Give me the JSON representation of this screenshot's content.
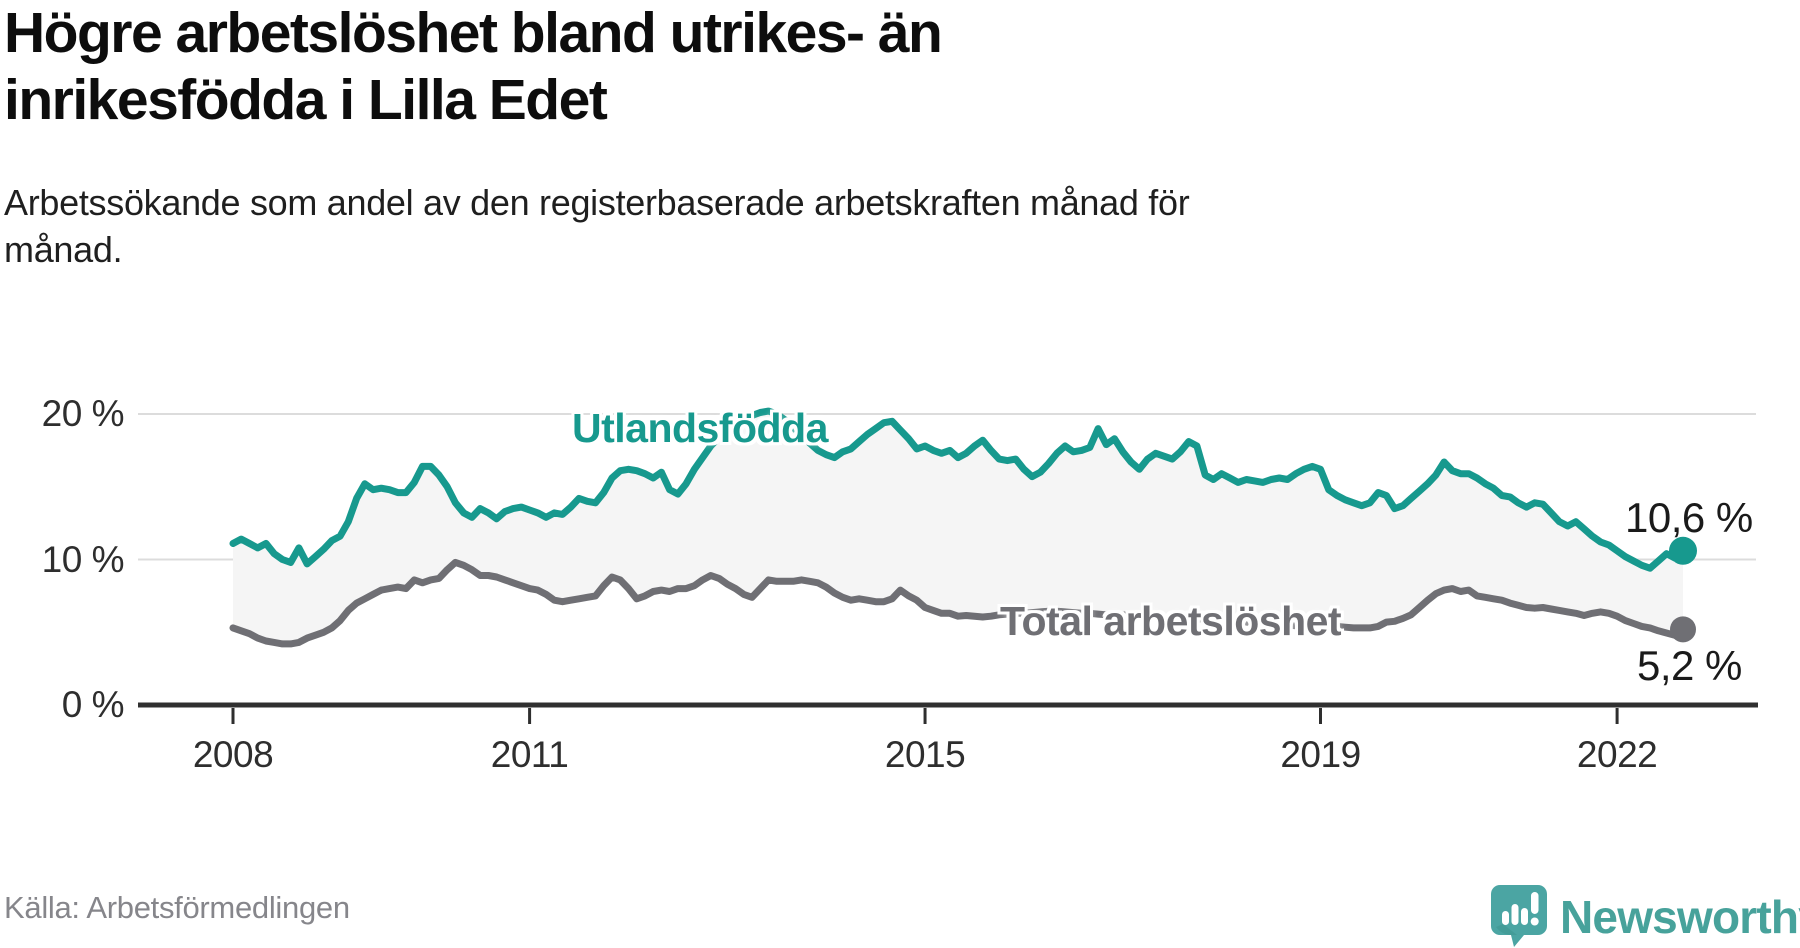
{
  "title_lines": [
    "Högre arbetslöshet bland utrikes- än",
    "inrikesfödda i Lilla Edet"
  ],
  "subtitle_lines": [
    "Arbetssökande som andel av den registerbaserade arbetskraften månad för",
    "månad."
  ],
  "source": "Källa: Arbetsförmedlingen",
  "branding": {
    "logo_text": "Newsworthy",
    "logo_icon": "newsworthy-speech-bubble-bar-chart-icon",
    "logo_text_color": "#47a29b",
    "logo_icon_color": "#4ba5a3",
    "logo_icon_shadow_color": "#3e968f"
  },
  "colors": {
    "background": "#ffffff",
    "grid": "#dcdcdc",
    "axis": "#303030",
    "tick_text": "#2e2e2e",
    "fill_between": "#f5f5f5",
    "foreign_born": "#17998e",
    "total": "#6f6f74",
    "value_label": "#1a1a1a"
  },
  "chart_data": {
    "type": "line",
    "title": "Högre arbetslöshet bland utrikes- än inrikesfödda i Lilla Edet",
    "subtitle": "Arbetssökande som andel av den registerbaserade arbetskraften månad för månad.",
    "unit": "percent",
    "x_start": "2008-01",
    "x_end": "2022-09",
    "x_frequency": "monthly",
    "x_ticks": [
      {
        "label": "2008",
        "month_index": 0
      },
      {
        "label": "2011",
        "month_index": 36
      },
      {
        "label": "2015",
        "month_index": 84
      },
      {
        "label": "2019",
        "month_index": 132
      },
      {
        "label": "2022",
        "month_index": 168
      }
    ],
    "y_ticks": [
      {
        "label": "20 %",
        "value": 20
      },
      {
        "label": "10 %",
        "value": 10
      },
      {
        "label": "0 %",
        "value": 0
      }
    ],
    "ylim": [
      0,
      21.5
    ],
    "grid": "horizontal-only",
    "legend": "inline-labels",
    "series": [
      {
        "name": "Utlandsfödda",
        "color": "#17998e",
        "end_value_label": "10,6 %",
        "end_value": 10.6,
        "values": [
          11.1,
          11.4,
          11.1,
          10.8,
          11.1,
          10.4,
          10.0,
          9.8,
          10.8,
          9.7,
          10.2,
          10.7,
          11.3,
          11.6,
          12.6,
          14.2,
          15.2,
          14.8,
          14.9,
          14.8,
          14.6,
          14.6,
          15.3,
          16.4,
          16.4,
          15.8,
          15.0,
          13.9,
          13.2,
          12.9,
          13.5,
          13.2,
          12.8,
          13.3,
          13.5,
          13.6,
          13.4,
          13.2,
          12.9,
          13.2,
          13.1,
          13.6,
          14.2,
          14.0,
          13.9,
          14.6,
          15.6,
          16.1,
          16.2,
          16.1,
          15.9,
          15.6,
          16.0,
          14.8,
          14.5,
          15.2,
          16.2,
          17.0,
          17.8,
          18.4,
          18.9,
          19.3,
          19.6,
          19.9,
          20.1,
          20.2,
          20.0,
          19.6,
          19.1,
          18.5,
          18.0,
          17.5,
          17.2,
          17.0,
          17.4,
          17.6,
          18.1,
          18.6,
          19.0,
          19.4,
          19.5,
          18.9,
          18.3,
          17.6,
          17.8,
          17.5,
          17.3,
          17.5,
          17.0,
          17.3,
          17.8,
          18.2,
          17.5,
          16.9,
          16.8,
          16.9,
          16.2,
          15.7,
          16.0,
          16.6,
          17.3,
          17.8,
          17.4,
          17.5,
          17.7,
          19.0,
          17.9,
          18.3,
          17.4,
          16.7,
          16.2,
          16.9,
          17.3,
          17.1,
          16.9,
          17.4,
          18.1,
          17.8,
          15.8,
          15.5,
          15.9,
          15.6,
          15.3,
          15.5,
          15.4,
          15.3,
          15.5,
          15.6,
          15.5,
          15.9,
          16.2,
          16.4,
          16.2,
          14.8,
          14.4,
          14.1,
          13.9,
          13.7,
          13.9,
          14.6,
          14.4,
          13.5,
          13.7,
          14.2,
          14.7,
          15.2,
          15.8,
          16.7,
          16.1,
          15.9,
          15.9,
          15.6,
          15.2,
          14.9,
          14.4,
          14.3,
          13.9,
          13.6,
          13.9,
          13.8,
          13.2,
          12.6,
          12.3,
          12.6,
          12.1,
          11.6,
          11.2,
          11.0,
          10.6,
          10.2,
          9.9,
          9.6,
          9.4,
          9.9,
          10.4,
          10.1,
          10.6
        ]
      },
      {
        "name": "Total arbetslöshet",
        "color": "#6f6f74",
        "end_value_label": "5,2 %",
        "end_value": 5.2,
        "values": [
          5.3,
          5.1,
          4.9,
          4.6,
          4.4,
          4.3,
          4.2,
          4.2,
          4.3,
          4.6,
          4.8,
          5.0,
          5.3,
          5.8,
          6.5,
          7.0,
          7.3,
          7.6,
          7.9,
          8.0,
          8.1,
          8.0,
          8.6,
          8.4,
          8.6,
          8.7,
          9.3,
          9.8,
          9.6,
          9.3,
          8.9,
          8.9,
          8.8,
          8.6,
          8.4,
          8.2,
          8.0,
          7.9,
          7.6,
          7.2,
          7.1,
          7.2,
          7.3,
          7.4,
          7.5,
          8.2,
          8.8,
          8.6,
          8.0,
          7.3,
          7.5,
          7.8,
          7.9,
          7.8,
          8.0,
          8.0,
          8.2,
          8.6,
          8.9,
          8.7,
          8.3,
          8.0,
          7.6,
          7.4,
          8.0,
          8.6,
          8.5,
          8.5,
          8.5,
          8.6,
          8.5,
          8.4,
          8.1,
          7.7,
          7.4,
          7.2,
          7.3,
          7.2,
          7.1,
          7.1,
          7.3,
          7.9,
          7.5,
          7.2,
          6.7,
          6.5,
          6.3,
          6.3,
          6.1,
          6.15,
          6.1,
          6.05,
          6.1,
          6.2,
          6.25,
          6.3,
          6.3,
          6.35,
          6.4,
          6.45,
          6.45,
          6.4,
          6.35,
          6.3,
          6.3,
          6.25,
          6.2,
          6.2,
          6.2,
          6.15,
          6.1,
          6.1,
          6.05,
          6.0,
          6.0,
          6.0,
          5.95,
          5.9,
          5.9,
          5.9,
          5.85,
          5.8,
          5.75,
          5.7,
          5.65,
          5.6,
          5.55,
          5.5,
          5.5,
          5.45,
          5.45,
          5.5,
          5.5,
          5.45,
          5.4,
          5.35,
          5.3,
          5.3,
          5.3,
          5.4,
          5.7,
          5.75,
          5.95,
          6.2,
          6.7,
          7.2,
          7.65,
          7.9,
          8.0,
          7.8,
          7.9,
          7.5,
          7.4,
          7.3,
          7.2,
          7.0,
          6.85,
          6.7,
          6.65,
          6.7,
          6.6,
          6.5,
          6.4,
          6.3,
          6.15,
          6.3,
          6.4,
          6.3,
          6.1,
          5.8,
          5.6,
          5.4,
          5.3,
          5.1,
          4.95,
          4.8,
          5.2
        ]
      }
    ]
  }
}
